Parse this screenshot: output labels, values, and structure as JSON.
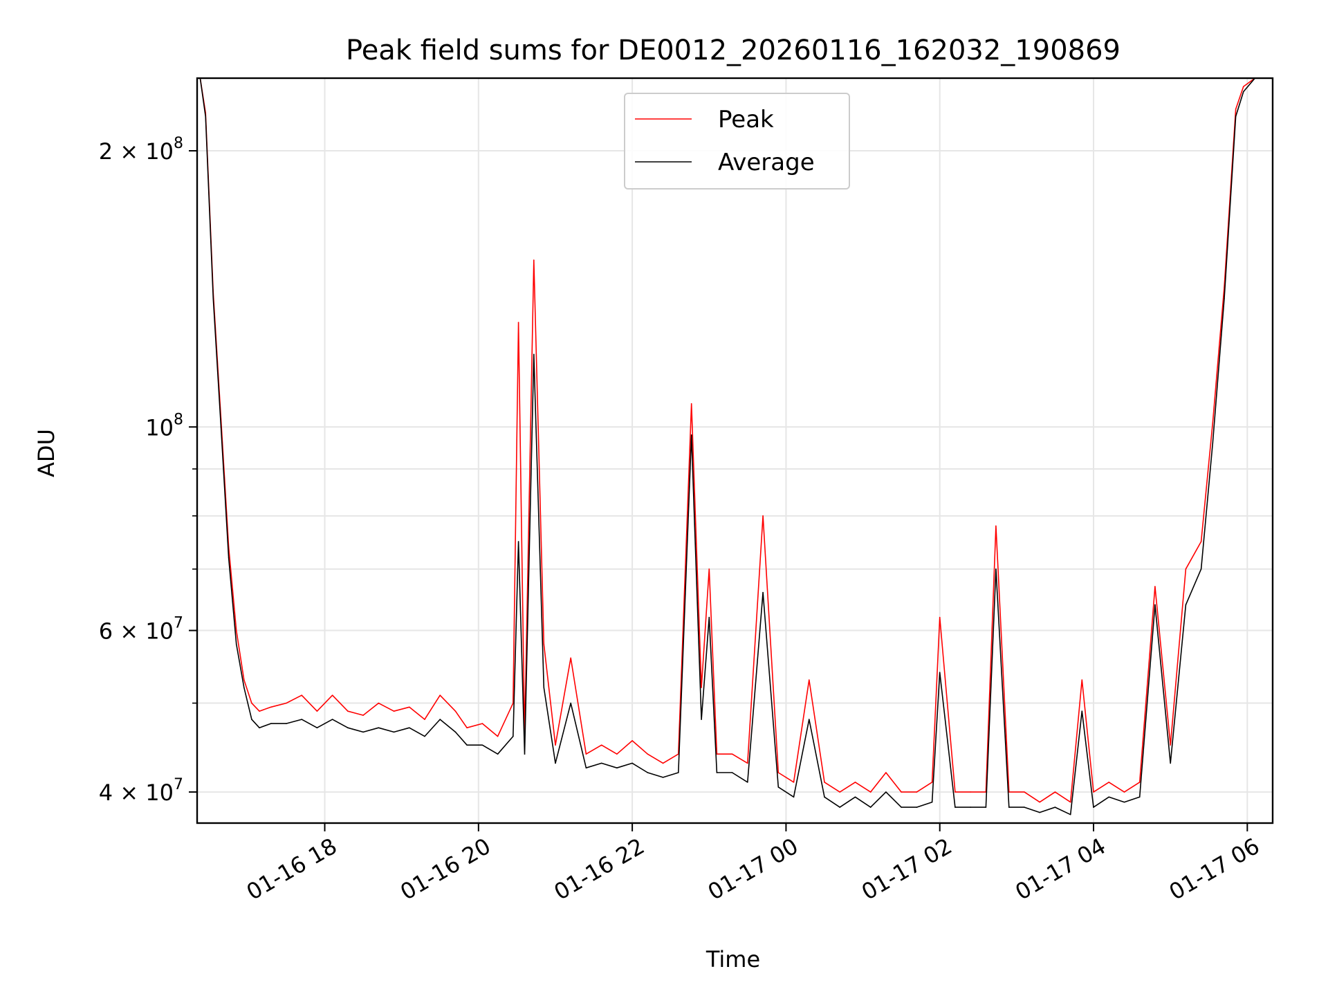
{
  "chart_data": {
    "type": "line",
    "title": "Peak field sums for DE0012_20260116_162032_190869",
    "xlabel": "Time",
    "ylabel": "ADU",
    "yscale": "log",
    "ylim": [
      37000000,
      240000000
    ],
    "xlim": [
      16.34,
      30.33
    ],
    "grid": true,
    "legend_position": "top-center",
    "x_ticks": [
      {
        "value": 18,
        "label": "01-16 18"
      },
      {
        "value": 20,
        "label": "01-16 20"
      },
      {
        "value": 22,
        "label": "01-16 22"
      },
      {
        "value": 24,
        "label": "01-17 00"
      },
      {
        "value": 26,
        "label": "01-17 02"
      },
      {
        "value": 28,
        "label": "01-17 04"
      },
      {
        "value": 30,
        "label": "01-17 06"
      }
    ],
    "y_ticks": [
      {
        "value": 40000000,
        "mantissa": "4 × 10",
        "exp": "7"
      },
      {
        "value": 60000000,
        "mantissa": "6 × 10",
        "exp": "7"
      },
      {
        "value": 100000000,
        "mantissa": "10",
        "exp": "8"
      },
      {
        "value": 200000000,
        "mantissa": "2 × 10",
        "exp": "8"
      }
    ],
    "y_minor_ticks": [
      50000000,
      70000000,
      80000000,
      90000000
    ],
    "series": [
      {
        "name": "Peak",
        "color": "#ff0000",
        "x": [
          16.38,
          16.45,
          16.55,
          16.65,
          16.75,
          16.85,
          16.95,
          17.05,
          17.15,
          17.3,
          17.5,
          17.7,
          17.9,
          18.1,
          18.3,
          18.5,
          18.7,
          18.9,
          19.1,
          19.3,
          19.5,
          19.7,
          19.85,
          20.05,
          20.25,
          20.45,
          20.52,
          20.6,
          20.72,
          20.85,
          21.0,
          21.2,
          21.4,
          21.6,
          21.8,
          22.0,
          22.2,
          22.4,
          22.6,
          22.77,
          22.9,
          23.0,
          23.1,
          23.3,
          23.5,
          23.7,
          23.9,
          24.1,
          24.3,
          24.5,
          24.7,
          24.9,
          25.1,
          25.3,
          25.5,
          25.7,
          25.9,
          26.0,
          26.2,
          26.4,
          26.6,
          26.73,
          26.9,
          27.1,
          27.3,
          27.5,
          27.7,
          27.85,
          28.0,
          28.2,
          28.4,
          28.6,
          28.8,
          29.0,
          29.2,
          29.4,
          29.55,
          29.7,
          29.85,
          29.95,
          30.1,
          30.3
        ],
        "y": [
          240000000,
          220000000,
          140000000,
          102000000,
          74000000,
          60000000,
          53000000,
          50000000,
          49000000,
          49500000,
          50000000,
          51000000,
          49000000,
          51000000,
          49000000,
          48500000,
          50000000,
          49000000,
          49500000,
          48000000,
          51000000,
          49000000,
          47000000,
          47500000,
          46000000,
          50000000,
          130000000,
          46000000,
          152000000,
          58000000,
          45000000,
          56000000,
          44000000,
          45000000,
          44000000,
          45500000,
          44000000,
          43000000,
          44000000,
          106000000,
          52000000,
          70000000,
          44000000,
          44000000,
          43000000,
          80000000,
          42000000,
          41000000,
          53000000,
          41000000,
          40000000,
          41000000,
          40000000,
          42000000,
          40000000,
          40000000,
          41000000,
          62000000,
          40000000,
          40000000,
          40000000,
          78000000,
          40000000,
          40000000,
          39000000,
          40000000,
          39000000,
          53000000,
          40000000,
          41000000,
          40000000,
          41000000,
          67000000,
          45000000,
          70000000,
          75000000,
          101000000,
          142000000,
          222000000,
          235000000,
          240000000,
          240000000
        ]
      },
      {
        "name": "Average",
        "color": "#000000",
        "x": [
          16.38,
          16.45,
          16.55,
          16.65,
          16.75,
          16.85,
          16.95,
          17.05,
          17.15,
          17.3,
          17.5,
          17.7,
          17.9,
          18.1,
          18.3,
          18.5,
          18.7,
          18.9,
          19.1,
          19.3,
          19.5,
          19.7,
          19.85,
          20.05,
          20.25,
          20.45,
          20.52,
          20.6,
          20.72,
          20.85,
          21.0,
          21.2,
          21.4,
          21.6,
          21.8,
          22.0,
          22.2,
          22.4,
          22.6,
          22.77,
          22.9,
          23.0,
          23.1,
          23.3,
          23.5,
          23.7,
          23.9,
          24.1,
          24.3,
          24.5,
          24.7,
          24.9,
          25.1,
          25.3,
          25.5,
          25.7,
          25.9,
          26.0,
          26.2,
          26.4,
          26.6,
          26.73,
          26.9,
          27.1,
          27.3,
          27.5,
          27.7,
          27.85,
          28.0,
          28.2,
          28.4,
          28.6,
          28.8,
          29.0,
          29.2,
          29.4,
          29.55,
          29.7,
          29.85,
          29.95,
          30.1,
          30.3
        ],
        "y": [
          240000000,
          218000000,
          138000000,
          100000000,
          72000000,
          58000000,
          52000000,
          48000000,
          47000000,
          47500000,
          47500000,
          48000000,
          47000000,
          48000000,
          47000000,
          46500000,
          47000000,
          46500000,
          47000000,
          46000000,
          48000000,
          46500000,
          45000000,
          45000000,
          44000000,
          46000000,
          75000000,
          44000000,
          120000000,
          52000000,
          43000000,
          50000000,
          42500000,
          43000000,
          42500000,
          43000000,
          42000000,
          41500000,
          42000000,
          98000000,
          48000000,
          62000000,
          42000000,
          42000000,
          41000000,
          66000000,
          40500000,
          39500000,
          48000000,
          39500000,
          38500000,
          39500000,
          38500000,
          40000000,
          38500000,
          38500000,
          39000000,
          54000000,
          38500000,
          38500000,
          38500000,
          70000000,
          38500000,
          38500000,
          38000000,
          38500000,
          37800000,
          49000000,
          38500000,
          39500000,
          39000000,
          39500000,
          64000000,
          43000000,
          64000000,
          70000000,
          96000000,
          138000000,
          218000000,
          232000000,
          240000000,
          240000000
        ]
      }
    ]
  }
}
